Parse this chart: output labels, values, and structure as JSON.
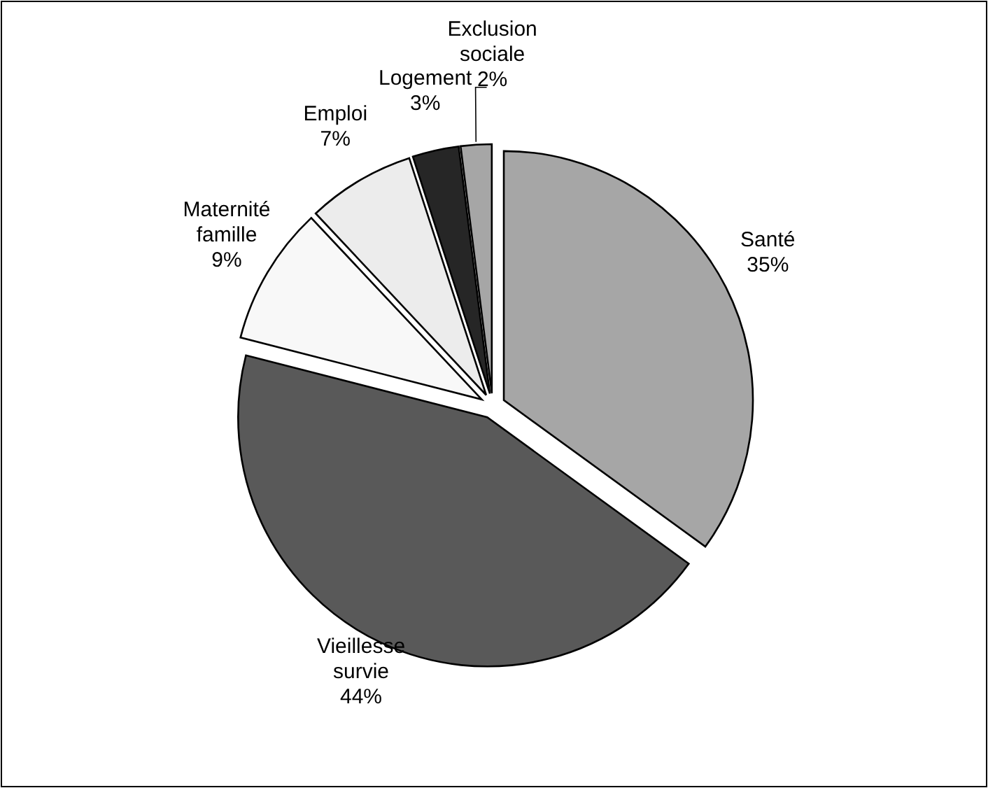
{
  "chart_data": {
    "type": "pie",
    "categories": [
      "Santé",
      "Vieillesse survie",
      "Maternité famille",
      "Emploi",
      "Logement",
      "Exclusion sociale"
    ],
    "values": [
      35,
      44,
      9,
      7,
      3,
      2
    ],
    "colors": [
      "#a6a6a6",
      "#595959",
      "#f8f8f8",
      "#ececec",
      "#262626",
      "#a6a6a6"
    ],
    "value_labels": [
      "35%",
      "44%",
      "9%",
      "7%",
      "3%",
      "2%"
    ]
  }
}
